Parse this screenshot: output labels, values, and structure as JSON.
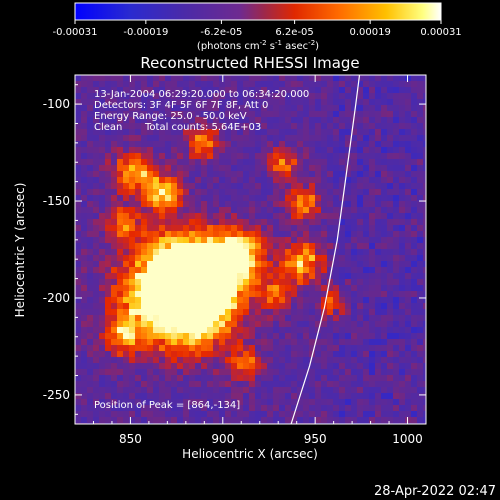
{
  "colorbar": {
    "tick_labels": [
      "-0.00031",
      "-0.00019",
      "-6.2e-05",
      "6.2e-05",
      "0.00019",
      "0.00031"
    ],
    "tick_values": [
      -0.00031,
      -0.00019,
      -6.2e-05,
      6.2e-05,
      0.00019,
      0.00031
    ],
    "range": [
      -0.00031,
      0.00031
    ],
    "unit_label": "(photons cm",
    "unit_exp1": "-2",
    "unit_s": " s",
    "unit_exp2": "-1",
    "unit_asec": " asec",
    "unit_exp3": "-2",
    "unit_close": ")",
    "colors": [
      "#0000ff",
      "#3a2dbd",
      "#5a2aa8",
      "#7a2a8f",
      "#b02a3a",
      "#ff3000",
      "#ffa000",
      "#ffff60",
      "#ffffff"
    ]
  },
  "chart_data": {
    "type": "heatmap",
    "title": "Reconstructed RHESSI Image",
    "xlabel": "Heliocentric X (arcsec)",
    "ylabel": "Heliocentric Y (arcsec)",
    "xlim": [
      820,
      1010
    ],
    "ylim": [
      -265,
      -85
    ],
    "xticks": [
      850,
      900,
      950,
      1000
    ],
    "yticks": [
      -100,
      -150,
      -200,
      -250
    ],
    "limb_curve": [
      [
        937,
        -265
      ],
      [
        947,
        -235
      ],
      [
        955,
        -205
      ],
      [
        962,
        -170
      ],
      [
        967,
        -135
      ],
      [
        972,
        -100
      ],
      [
        974,
        -85
      ]
    ],
    "peak_position": [
      864,
      -134
    ],
    "annotations": {
      "time": "13-Jan-2004 06:29:20.000 to 06:34:20.000",
      "detectors": "Detectors: 3F 4F 5F 6F 7F 8F, Att 0",
      "energy": "Energy Range: 25.0 - 50.0 keV",
      "clean_label": "Clean",
      "counts": "Total counts: 5.64E+03",
      "peak": "Position of Peak = [864,-134]"
    }
  },
  "footer": {
    "timestamp": "28-Apr-2022 02:47"
  }
}
